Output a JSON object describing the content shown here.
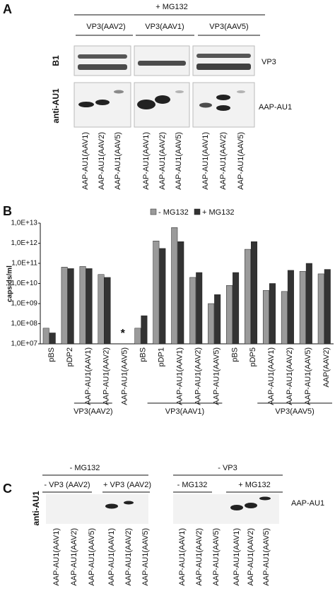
{
  "panel_a": {
    "label": "A",
    "treatment": "+ MG132",
    "groups": [
      "VP3(AAV2)",
      "VP3(AAV1)",
      "VP3(AAV5)"
    ],
    "rows": [
      "B1",
      "anti-AU1"
    ],
    "band_labels": [
      "VP3",
      "AAP-AU1"
    ],
    "lanes": [
      "AAP-AU1(AAV1)",
      "AAP-AU1(AAV2)",
      "AAP-AU1(AAV5)",
      "AAP-AU1(AAV1)",
      "AAP-AU1(AAV2)",
      "AAP-AU1(AAV5)",
      "AAP-AU1(AAV1)",
      "AAP-AU1(AAV2)",
      "AAP-AU1(AAV5)"
    ]
  },
  "chart_data": {
    "type": "bar",
    "panel_label": "B",
    "y_label": "capsids/ml",
    "log_scale": true,
    "legend": "top",
    "categories": [
      "pBS",
      "pDP2",
      "AAP-AU1(AAV1)",
      "AAP-AU1(AAV2)",
      "AAP-AU1(AAV5)",
      "pBS",
      "pDP1",
      "AAP-AU1(AAV1)",
      "AAP-AU1(AAV2)",
      "AAP-AU1(AAV5)",
      "pBS",
      "pDP5",
      "AAP-AU1(AAV1)",
      "AAP-AU1(AAV2)",
      "AAP-AU1(AAV5)",
      "AAP(AAV2)"
    ],
    "series": [
      {
        "name": "- MG132",
        "color": "#9a9a9a",
        "values": [
          60000000.0,
          65000000000.0,
          70000000000.0,
          28000000000.0,
          null,
          60000000.0,
          1300000000000.0,
          6000000000000.0,
          20000000000.0,
          1000000000.0,
          8000000000.0,
          500000000000.0,
          4500000000.0,
          4000000000.0,
          40000000000.0,
          30000000000.0
        ]
      },
      {
        "name": "+ MG132",
        "color": "#333333",
        "values": [
          35000000.0,
          55000000000.0,
          55000000000.0,
          20000000000.0,
          null,
          250000000.0,
          550000000000.0,
          1200000000000.0,
          35000000000.0,
          2800000000.0,
          35000000000.0,
          1200000000000.0,
          10000000000.0,
          45000000000.0,
          100000000000.0,
          50000000000.0
        ]
      }
    ],
    "ylim": [
      10000000.0,
      10000000000000.0
    ],
    "yticks": [
      {
        "value": 10000000.0,
        "label": "1,0E+07"
      },
      {
        "value": 100000000.0,
        "label": "1,0E+08"
      },
      {
        "value": 1000000000.0,
        "label": "1,0E+09"
      },
      {
        "value": 10000000000.0,
        "label": "1,0E+10"
      },
      {
        "value": 100000000000.0,
        "label": "1,0E+11"
      },
      {
        "value": 1000000000000.0,
        "label": "1,0E+12"
      },
      {
        "value": 10000000000000.0,
        "label": "1,0E+13"
      }
    ],
    "grid": false,
    "annotation": "*",
    "groups": [
      "VP3(AAV2)",
      "VP3(AAV1)",
      "VP3(AAV5)"
    ]
  },
  "panel_c": {
    "label": "C",
    "headers": [
      "- MG132",
      "- VP3"
    ],
    "groups": [
      "- VP3 (AAV2)",
      "+ VP3 (AAV2)",
      "- MG132",
      "+ MG132"
    ],
    "row_label": "anti-AU1",
    "band_label": "AAP-AU1",
    "lanes": [
      "AAP-AU1(AAV1)",
      "AAP-AU1(AAV2)",
      "AAP-AU1(AAV5)",
      "AAP-AU1(AAV1)",
      "AAP-AU1(AAV2)",
      "AAP-AU1(AAV5)",
      "AAP-AU1(AAV1)",
      "AAP-AU1(AAV2)",
      "AAP-AU1(AAV5)",
      "AAP-AU1(AAV1)",
      "AAP-AU1(AAV2)",
      "AAP-AU1(AAV5)"
    ]
  }
}
